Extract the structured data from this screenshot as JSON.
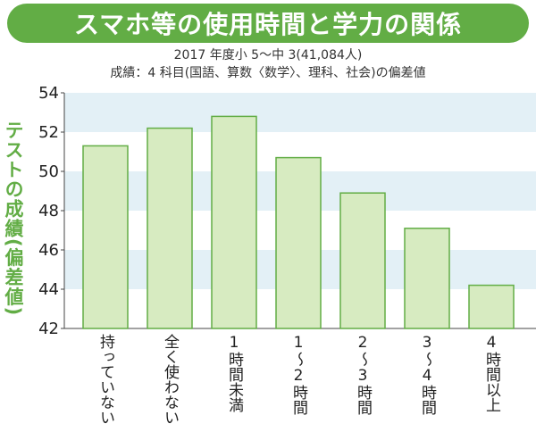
{
  "chart_data": {
    "type": "bar",
    "title": "スマホ等の使用時間と学力の関係",
    "subtitle_1": "2017 年度小 5～中 3(41,084人)",
    "subtitle_2": "成績：4 科目(国語、算数〈数学〉、理科、社会)の偏差値",
    "ylabel": "テストの成績(偏差値)",
    "ylim": [
      42,
      54
    ],
    "yticks": [
      "42",
      "44",
      "46",
      "48",
      "50",
      "52",
      "54"
    ],
    "categories": [
      "持っていない",
      "全く使わない",
      "1時間未満",
      "1～2時間",
      "2～3時間",
      "3～4時間",
      "4時間以上"
    ],
    "values": [
      51.3,
      52.2,
      52.8,
      50.7,
      48.9,
      47.1,
      44.2
    ],
    "colors": {
      "bar_fill": "#d7ebc1",
      "bar_stroke": "#62ad45",
      "band": "#e3f0f6",
      "title_bg": "#62ad45"
    }
  }
}
